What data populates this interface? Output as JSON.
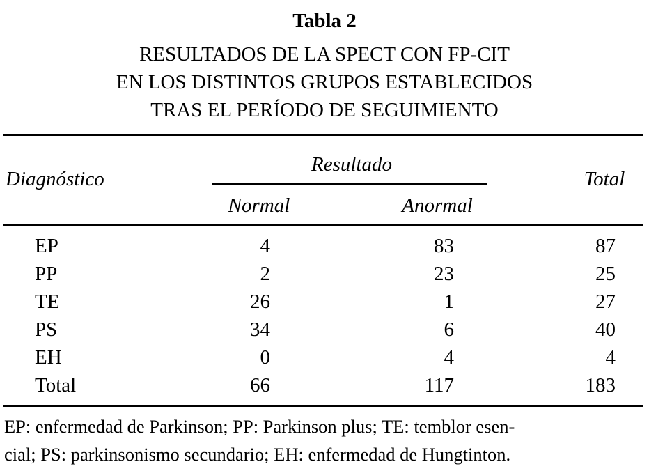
{
  "header": {
    "title": "Tabla 2",
    "subtitle": [
      "RESULTADOS DE LA SPECT CON FP-CIT",
      "EN LOS DISTINTOS GRUPOS ESTABLECIDOS",
      "TRAS EL PERÍODO DE SEGUIMIENTO"
    ]
  },
  "table": {
    "columns": {
      "diagnosis": "Diagnóstico",
      "group": "Resultado",
      "normal": "Normal",
      "abnormal": "Anormal",
      "total": "Total"
    },
    "rows": [
      [
        "EP",
        4,
        83,
        87
      ],
      [
        "PP",
        2,
        23,
        25
      ],
      [
        "TE",
        26,
        1,
        27
      ],
      [
        "PS",
        34,
        6,
        40
      ],
      [
        "EH",
        0,
        4,
        4
      ],
      [
        "Total",
        66,
        117,
        183
      ]
    ]
  },
  "footnote": [
    "EP: enfermedad de Parkinson; PP: Parkinson plus; TE: temblor esen-",
    "cial; PS: parkinsonismo secundario; EH: enfermedad de Hungtinton."
  ]
}
